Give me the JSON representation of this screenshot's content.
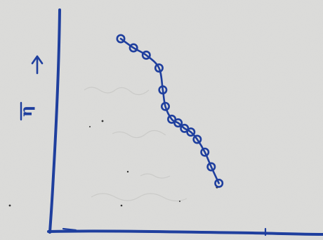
{
  "chart_data": {
    "type": "line",
    "title": "",
    "xlabel": "",
    "ylabel": "η",
    "ylabel_overbar": true,
    "ylabel_arrow": "up",
    "xlim": [
      0,
      14
    ],
    "ylim": [
      0,
      10
    ],
    "grid": false,
    "ticks": false,
    "series": [
      {
        "name": "",
        "color": "#1f3f9e",
        "marker": "open-circle",
        "x": [
          0,
          1,
          2,
          3,
          3.3,
          3.5,
          4.0,
          4.5,
          5.0,
          5.5,
          6.0,
          6.6,
          7.1,
          7.7
        ],
        "y": [
          9.5,
          9.0,
          8.6,
          7.9,
          6.7,
          5.8,
          5.1,
          4.9,
          4.6,
          4.4,
          4.0,
          3.3,
          2.5,
          1.6
        ]
      }
    ],
    "colors": {
      "paper": "#dcdcda",
      "ink": "#1f3f9e"
    }
  }
}
